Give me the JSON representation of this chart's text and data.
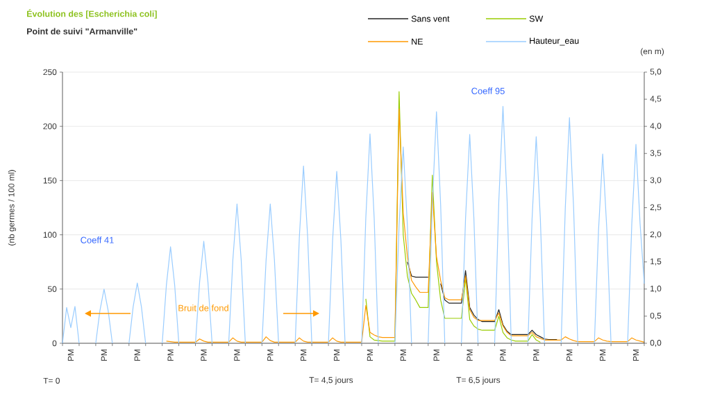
{
  "chart_data": {
    "type": "line",
    "title": "Évolution des [Escherichia coli]",
    "subtitle": "Point de suivi \"Armanville\"",
    "ylabel": "(nb germes / 100 ml)",
    "y2label": "(en m)",
    "categories": [
      null,
      null,
      "PM",
      null,
      null,
      null,
      null,
      null,
      null,
      null,
      "PM",
      null,
      null,
      null,
      null,
      null,
      null,
      null,
      "PM",
      null,
      null,
      null,
      null,
      null,
      null,
      null,
      "PM",
      null,
      null,
      null,
      null,
      null,
      null,
      null,
      "PM",
      null,
      null,
      null,
      null,
      null,
      null,
      null,
      "PM",
      null,
      null,
      null,
      null,
      null,
      null,
      null,
      "PM",
      null,
      null,
      null,
      null,
      null,
      null,
      null,
      "PM",
      null,
      null,
      null,
      null,
      null,
      null,
      null,
      "PM",
      null,
      null,
      null,
      null,
      null,
      null,
      null,
      "PM",
      null,
      null,
      null,
      null,
      null,
      null,
      null,
      "PM",
      null,
      null,
      null,
      null,
      null,
      null,
      null,
      "PM",
      null,
      null,
      null,
      null,
      null,
      null,
      null,
      "PM",
      null,
      null,
      null,
      null,
      null,
      null,
      null,
      "PM",
      null,
      null,
      null,
      null,
      null,
      null,
      null,
      "PM",
      null,
      null,
      null,
      null,
      null,
      null,
      null,
      "PM",
      null,
      null,
      null,
      null,
      null,
      null,
      null,
      "PM",
      null,
      null,
      null,
      null,
      null,
      null,
      null,
      "PM",
      null,
      null
    ],
    "ylim": [
      0,
      250
    ],
    "yticks": [
      0,
      50,
      100,
      150,
      200,
      250
    ],
    "y2lim": [
      0,
      5
    ],
    "y2ticks": [
      {
        "value": 0,
        "label": "0,0"
      },
      {
        "value": 0.5,
        "label": "0,5"
      },
      {
        "value": 1,
        "label": "1,0"
      },
      {
        "value": 1.5,
        "label": "1,5"
      },
      {
        "value": 2,
        "label": "2,0"
      },
      {
        "value": 2.5,
        "label": "2,5"
      },
      {
        "value": 3,
        "label": "3,0"
      },
      {
        "value": 3.5,
        "label": "3,5"
      },
      {
        "value": 4,
        "label": "4,0"
      },
      {
        "value": 4.5,
        "label": "4,5"
      },
      {
        "value": 5,
        "label": "5,0"
      }
    ],
    "grid": "y",
    "legend": "top",
    "annotations": [
      "Coeff 41",
      "Bruit de fond",
      "Coeff 95",
      "T= 0",
      "T= 4,5 jours",
      "T= 6,5 jours"
    ],
    "series": [
      {
        "name": "Sans vent",
        "color": "#222222",
        "values": [
          null,
          null,
          null,
          null,
          null,
          null,
          null,
          null,
          null,
          null,
          null,
          null,
          null,
          null,
          null,
          null,
          null,
          null,
          null,
          null,
          null,
          null,
          null,
          null,
          null,
          null,
          null,
          null,
          null,
          null,
          null,
          null,
          null,
          null,
          null,
          null,
          null,
          null,
          null,
          null,
          null,
          null,
          null,
          null,
          null,
          null,
          null,
          null,
          null,
          null,
          null,
          null,
          null,
          null,
          null,
          null,
          null,
          null,
          null,
          null,
          null,
          null,
          null,
          null,
          null,
          null,
          null,
          null,
          null,
          null,
          null,
          null,
          null,
          null,
          null,
          null,
          null,
          null,
          null,
          null,
          null,
          null,
          null,
          75,
          62,
          61,
          61,
          61,
          61,
          null,
          null,
          55,
          40,
          37,
          37,
          37,
          37,
          67,
          33,
          26,
          22,
          20,
          20,
          20,
          20,
          31,
          17,
          11,
          8,
          8,
          8,
          8,
          8,
          12,
          8,
          6,
          4,
          3.5,
          3.5,
          3.5,
          null,
          null,
          null,
          null,
          null,
          null,
          null,
          null,
          null,
          null,
          null,
          null,
          null,
          null,
          null,
          null,
          null,
          null,
          null,
          null,
          null
        ]
      },
      {
        "name": "SW",
        "color": "#99cc00",
        "values": [
          null,
          null,
          null,
          null,
          null,
          null,
          null,
          null,
          null,
          null,
          null,
          null,
          null,
          null,
          null,
          null,
          null,
          null,
          null,
          null,
          null,
          null,
          null,
          null,
          null,
          null,
          null,
          null,
          null,
          null,
          null,
          null,
          null,
          null,
          null,
          null,
          null,
          null,
          null,
          null,
          null,
          null,
          null,
          null,
          null,
          null,
          null,
          null,
          null,
          null,
          null,
          null,
          null,
          null,
          null,
          null,
          null,
          null,
          null,
          null,
          null,
          null,
          null,
          null,
          null,
          null,
          null,
          null,
          null,
          null,
          null,
          null,
          null,
          41,
          6,
          3,
          2.5,
          2,
          2,
          2,
          2,
          232,
          100,
          62,
          46,
          40,
          33,
          33,
          33,
          155,
          75,
          40,
          23,
          23,
          23,
          23,
          23,
          60,
          22,
          16,
          13,
          12,
          12,
          12,
          12,
          25,
          10,
          5,
          3,
          2,
          2,
          2,
          2,
          8,
          3,
          1,
          null,
          null,
          null,
          null,
          null,
          null,
          null,
          null,
          null,
          null,
          null,
          null,
          null,
          null,
          null,
          null,
          null,
          null,
          null,
          null,
          null,
          null,
          null,
          null,
          null
        ]
      },
      {
        "name": "NE",
        "color": "#ff9900",
        "values": [
          null,
          null,
          null,
          null,
          null,
          null,
          null,
          null,
          null,
          null,
          null,
          null,
          null,
          null,
          null,
          null,
          null,
          null,
          null,
          null,
          null,
          null,
          null,
          null,
          null,
          2,
          1.5,
          1,
          1,
          1,
          1,
          1,
          1,
          4,
          2,
          1,
          1,
          1,
          1,
          1,
          1,
          5,
          2,
          1,
          1,
          1,
          1,
          1,
          1,
          6,
          2.5,
          1,
          1,
          1,
          1,
          1,
          1,
          5,
          2,
          1,
          1,
          1,
          1,
          1,
          1,
          5,
          2,
          1,
          1,
          1,
          1,
          1,
          1,
          35,
          10,
          7.7,
          6,
          5.4,
          5.4,
          5.4,
          5.4,
          216,
          120,
          80,
          58,
          52,
          47,
          47,
          47,
          139,
          80,
          58,
          42,
          40,
          40,
          40,
          40,
          62,
          31,
          24,
          21,
          21,
          21,
          21,
          21,
          28,
          16,
          10,
          7,
          7,
          7,
          7,
          7,
          10,
          6,
          4.5,
          3,
          3,
          3,
          3,
          3,
          6,
          4,
          2.5,
          1.5,
          1.5,
          1.5,
          1.5,
          1.5,
          5,
          3,
          2,
          1.5,
          1.5,
          1.5,
          1.5,
          1.5,
          5,
          3,
          2,
          1
        ]
      },
      {
        "name": "Hauteur_eau",
        "color": "#99ccff",
        "axis": "y2",
        "values": [
          0,
          0.66,
          0.29,
          0.68,
          0,
          null,
          null,
          null,
          0,
          0.6,
          1.0,
          0.6,
          0,
          null,
          null,
          null,
          0,
          0.67,
          1.11,
          0.67,
          0,
          null,
          null,
          null,
          0,
          1.07,
          1.78,
          1.07,
          0,
          null,
          null,
          null,
          0,
          1.13,
          1.88,
          1.13,
          0,
          null,
          null,
          null,
          0,
          1.54,
          2.57,
          1.54,
          0,
          null,
          null,
          null,
          0,
          1.54,
          2.57,
          1.54,
          0,
          null,
          null,
          null,
          0,
          1.96,
          3.27,
          1.96,
          0,
          null,
          null,
          null,
          0,
          1.9,
          3.17,
          1.9,
          0,
          null,
          null,
          null,
          0,
          2.32,
          3.86,
          2.32,
          0,
          null,
          null,
          null,
          0,
          2.17,
          3.62,
          2.17,
          0,
          null,
          null,
          null,
          0,
          2.56,
          4.27,
          2.56,
          0,
          null,
          null,
          null,
          0,
          2.31,
          3.85,
          2.31,
          0,
          null,
          null,
          null,
          0,
          2.62,
          4.37,
          2.62,
          0,
          null,
          null,
          null,
          0,
          2.29,
          3.81,
          2.29,
          0,
          null,
          null,
          null,
          0,
          2.5,
          4.16,
          2.5,
          0,
          null,
          null,
          null,
          0,
          2.09,
          3.49,
          2.09,
          0,
          null,
          null,
          null,
          0,
          2.2,
          3.67,
          2.2,
          1.1
        ]
      }
    ]
  }
}
